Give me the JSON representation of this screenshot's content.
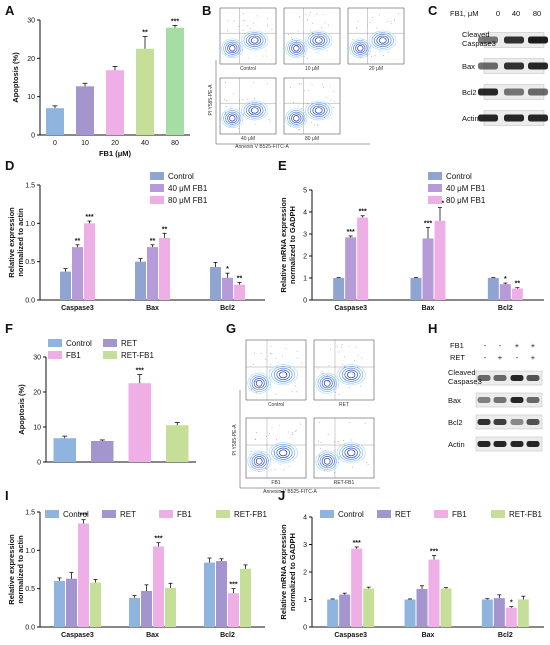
{
  "panels": {
    "A": {
      "letter": "A"
    },
    "B": {
      "letter": "B",
      "x_axis_label": "Annexin V B525-FITC-A",
      "y_axis_label": "PI Y585-PE-A",
      "plots": [
        {
          "label": "Control"
        },
        {
          "label": "10 μM"
        },
        {
          "label": "20 μM"
        },
        {
          "label": "40 μM"
        },
        {
          "label": "80 μM"
        }
      ]
    },
    "C": {
      "letter": "C",
      "header_label": "FB1, μM",
      "lanes": [
        "0",
        "40",
        "80"
      ],
      "rows": [
        "Cleaved Caspase3",
        "Bax",
        "Bcl2",
        "Actin"
      ]
    },
    "D": {
      "letter": "D"
    },
    "E": {
      "letter": "E"
    },
    "F": {
      "letter": "F"
    },
    "G": {
      "letter": "G",
      "x_axis_label": "Annexin V B525-FITC-A",
      "y_axis_label": "PI Y585-PE-A",
      "plots": [
        {
          "label": "Control"
        },
        {
          "label": "RET"
        },
        {
          "label": "FB1"
        },
        {
          "label": "RET-FB1"
        }
      ]
    },
    "H": {
      "letter": "H",
      "row_labels": [
        "FB1",
        "RET"
      ],
      "signs": [
        [
          "-",
          "-",
          "+",
          "+"
        ],
        [
          "-",
          "+",
          "-",
          "+"
        ]
      ],
      "rows": [
        "Cleaved Caspase3",
        "Bax",
        "Bcl2",
        "Actin"
      ]
    },
    "I": {
      "letter": "I"
    },
    "J": {
      "letter": "J"
    }
  },
  "chart_data": [
    {
      "id": "A",
      "type": "bar",
      "categories": [
        "0",
        "10",
        "20",
        "40",
        "80"
      ],
      "values": [
        7,
        12.7,
        16.9,
        22.5,
        28
      ],
      "errors": [
        0.6,
        0.8,
        1.0,
        3.2,
        0.6
      ],
      "colors": [
        "#8fb5df",
        "#a495cf",
        "#eeaee6",
        "#c5df98",
        "#a6dda4"
      ],
      "significance": [
        "",
        "",
        "",
        "**",
        "***"
      ],
      "xlabel": "FB1 (μM)",
      "ylabel": "Apoptosis (%)",
      "ylim": [
        0,
        30
      ],
      "yticks": [
        0,
        10,
        20,
        30
      ],
      "grid": false
    },
    {
      "id": "D",
      "type": "bar",
      "categories": [
        "Caspase3",
        "Bax",
        "Bcl2"
      ],
      "series": [
        {
          "name": "Control",
          "color": "#8fa4d0",
          "values": [
            0.37,
            0.5,
            0.43
          ],
          "errors": [
            0.04,
            0.04,
            0.06
          ],
          "significance": [
            "",
            "",
            ""
          ]
        },
        {
          "name": "40 μM FB1",
          "color": "#b79bd8",
          "values": [
            0.69,
            0.69,
            0.29
          ],
          "errors": [
            0.03,
            0.03,
            0.06
          ],
          "significance": [
            "**",
            "**",
            "*"
          ]
        },
        {
          "name": "80 μM FB1",
          "color": "#eeaee6",
          "values": [
            1.0,
            0.81,
            0.2
          ],
          "errors": [
            0.03,
            0.06,
            0.03
          ],
          "significance": [
            "***",
            "**",
            "**"
          ]
        }
      ],
      "ylabel": "Relative expression normalized to actin",
      "ylim": [
        0,
        1.5
      ],
      "yticks": [
        0,
        0.5,
        1.0,
        1.5
      ],
      "ytick_labels": [
        "0.0",
        "0.5",
        "1.0",
        "1.5"
      ],
      "legend": "top-right"
    },
    {
      "id": "E",
      "type": "bar",
      "categories": [
        "Caspase3",
        "Bax",
        "Bcl2"
      ],
      "series": [
        {
          "name": "Control",
          "color": "#8fa4d0",
          "values": [
            1.0,
            1.0,
            1.0
          ],
          "errors": [
            0.02,
            0.02,
            0.02
          ],
          "significance": [
            "",
            "",
            ""
          ]
        },
        {
          "name": "40 μM FB1",
          "color": "#b79bd8",
          "values": [
            2.85,
            2.8,
            0.72
          ],
          "errors": [
            0.06,
            0.5,
            0.05
          ],
          "significance": [
            "***",
            "***",
            "*"
          ]
        },
        {
          "name": "80 μM FB1",
          "color": "#eeaee6",
          "values": [
            3.75,
            3.6,
            0.52
          ],
          "errors": [
            0.08,
            0.6,
            0.04
          ],
          "significance": [
            "***",
            "***",
            "**"
          ]
        }
      ],
      "ylabel": "Relative mRNA expression normalized to GADPH",
      "ylim": [
        0,
        5
      ],
      "yticks": [
        0,
        1,
        2,
        3,
        4,
        5
      ],
      "legend": "top-right"
    },
    {
      "id": "F",
      "type": "bar",
      "categories": [
        "Control",
        "RET",
        "FB1",
        "RET-FB1"
      ],
      "values": [
        6.8,
        6.0,
        22.5,
        10.5
      ],
      "errors": [
        0.6,
        0.3,
        2.5,
        0.8
      ],
      "colors": [
        "#8fb5df",
        "#a495cf",
        "#eeaee6",
        "#c5df98"
      ],
      "significance": [
        "",
        "",
        "***",
        ""
      ],
      "ylabel": "Apoptosis (%)",
      "ylim": [
        0,
        30
      ],
      "yticks": [
        0,
        10,
        20,
        30
      ],
      "legend": "top-left"
    },
    {
      "id": "I",
      "type": "bar",
      "categories": [
        "Caspase3",
        "Bax",
        "Bcl2"
      ],
      "series": [
        {
          "name": "Control",
          "color": "#8fb5df",
          "values": [
            0.6,
            0.38,
            0.84
          ],
          "errors": [
            0.04,
            0.03,
            0.06
          ],
          "significance": [
            "",
            "",
            ""
          ]
        },
        {
          "name": "RET",
          "color": "#a495cf",
          "values": [
            0.63,
            0.47,
            0.86
          ],
          "errors": [
            0.08,
            0.08,
            0.03
          ],
          "significance": [
            "",
            "",
            ""
          ]
        },
        {
          "name": "FB1",
          "color": "#eeaee6",
          "values": [
            1.35,
            1.05,
            0.44
          ],
          "errors": [
            0.05,
            0.05,
            0.06
          ],
          "significance": [
            "***",
            "***",
            "***"
          ]
        },
        {
          "name": "RET-FB1",
          "color": "#c5df98",
          "values": [
            0.58,
            0.51,
            0.76
          ],
          "errors": [
            0.04,
            0.06,
            0.05
          ],
          "significance": [
            "",
            "",
            ""
          ]
        }
      ],
      "ylabel": "Relative expression normalized to actin",
      "ylim": [
        0,
        1.5
      ],
      "yticks": [
        0,
        0.5,
        1.0,
        1.5
      ],
      "ytick_labels": [
        "0.0",
        "0.5",
        "1.0",
        "1.5"
      ],
      "legend": "top"
    },
    {
      "id": "J",
      "type": "bar",
      "categories": [
        "Caspase3",
        "Bax",
        "Bcl2"
      ],
      "series": [
        {
          "name": "Control",
          "color": "#8fb5df",
          "values": [
            1.0,
            1.0,
            1.0
          ],
          "errors": [
            0.02,
            0.02,
            0.03
          ],
          "significance": [
            "",
            "",
            ""
          ]
        },
        {
          "name": "RET",
          "color": "#a495cf",
          "values": [
            1.18,
            1.38,
            1.05
          ],
          "errors": [
            0.05,
            0.12,
            0.12
          ],
          "significance": [
            "",
            "",
            ""
          ]
        },
        {
          "name": "FB1",
          "color": "#eeaee6",
          "values": [
            2.85,
            2.45,
            0.7
          ],
          "errors": [
            0.06,
            0.15,
            0.04
          ],
          "significance": [
            "***",
            "***",
            "*"
          ]
        },
        {
          "name": "RET-FB1",
          "color": "#c5df98",
          "values": [
            1.4,
            1.4,
            1.0
          ],
          "errors": [
            0.05,
            0.03,
            0.12
          ],
          "significance": [
            "",
            "",
            ""
          ]
        }
      ],
      "ylabel": "Relative mRNA expression normalized to GADPH",
      "ylim": [
        0,
        4
      ],
      "yticks": [
        0,
        1,
        2,
        3,
        4
      ],
      "legend": "top"
    }
  ]
}
